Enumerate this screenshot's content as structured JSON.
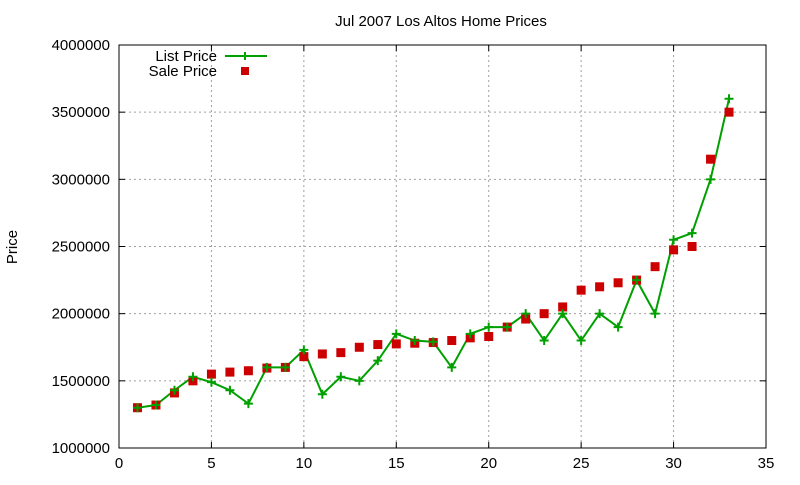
{
  "chart_data": {
    "type": "line",
    "title": "Jul 2007 Los Altos Home Prices",
    "xlabel": "",
    "ylabel": "Price",
    "xlim": [
      0,
      35
    ],
    "ylim": [
      1000000,
      4000000
    ],
    "xticks": [
      0,
      5,
      10,
      15,
      20,
      25,
      30,
      35
    ],
    "yticks": [
      1000000,
      1500000,
      2000000,
      2500000,
      3000000,
      3500000,
      4000000
    ],
    "grid": true,
    "legend_position": "top-left",
    "x": [
      1,
      2,
      3,
      4,
      5,
      6,
      7,
      8,
      9,
      10,
      11,
      12,
      13,
      14,
      15,
      16,
      17,
      18,
      19,
      20,
      21,
      22,
      23,
      24,
      25,
      26,
      27,
      28,
      29,
      30,
      31,
      32,
      33
    ],
    "series": [
      {
        "name": "List Price",
        "style": "linespoints",
        "color": "#00a000",
        "values": [
          1300000,
          1320000,
          1430000,
          1530000,
          1490000,
          1430000,
          1330000,
          1600000,
          1600000,
          1730000,
          1400000,
          1530000,
          1500000,
          1650000,
          1850000,
          1800000,
          1790000,
          1600000,
          1850000,
          1900000,
          1900000,
          2000000,
          1800000,
          2000000,
          1800000,
          2000000,
          1900000,
          2250000,
          2000000,
          2550000,
          2600000,
          3000000,
          3600000
        ]
      },
      {
        "name": "Sale Price",
        "style": "points",
        "color": "#cc0000",
        "values": [
          1300000,
          1320000,
          1410000,
          1500000,
          1550000,
          1565000,
          1575000,
          1595000,
          1600000,
          1680000,
          1700000,
          1710000,
          1750000,
          1770000,
          1775000,
          1780000,
          1785000,
          1800000,
          1820000,
          1830000,
          1900000,
          1960000,
          2000000,
          2050000,
          2175000,
          2200000,
          2230000,
          2250000,
          2350000,
          2475000,
          2500000,
          3150000,
          3500000
        ]
      }
    ]
  }
}
